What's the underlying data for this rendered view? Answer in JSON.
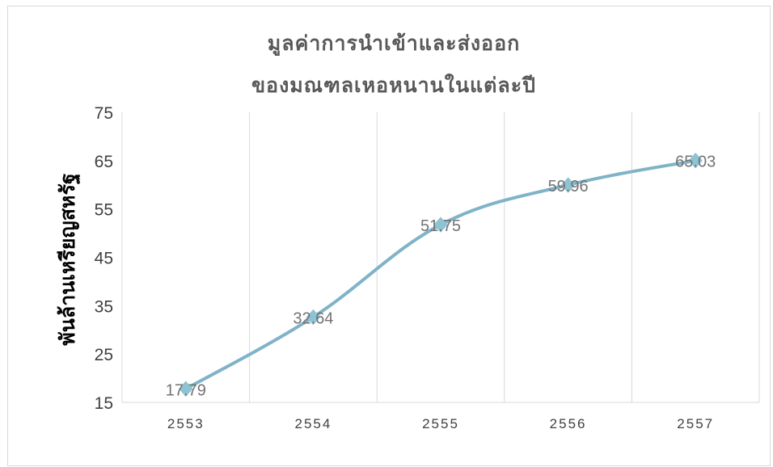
{
  "chart_data": {
    "type": "line",
    "title_lines": [
      "มูลค่าการนำเข้าและส่งออก",
      "ของมณฑลเหอหนานในแต่ละปี"
    ],
    "ylabel": "พันล้านเหรียญสหรัฐ",
    "xlabel": "",
    "categories": [
      "2553",
      "2554",
      "2555",
      "2556",
      "2557"
    ],
    "series": [
      {
        "values": [
          17.79,
          32.64,
          51.75,
          59.96,
          65.03
        ],
        "labels": [
          "17.79",
          "32.64",
          "51.75",
          "59.96",
          "65.03"
        ]
      }
    ],
    "ylim": [
      15,
      75
    ],
    "yticks": [
      "15",
      "25",
      "35",
      "45",
      "55",
      "65",
      "75"
    ],
    "grid": "vertical",
    "legend": "none",
    "colors": {
      "line": "#7fb3c8",
      "marker": "#8ec3d3",
      "grid": "#d9d9d9"
    }
  }
}
